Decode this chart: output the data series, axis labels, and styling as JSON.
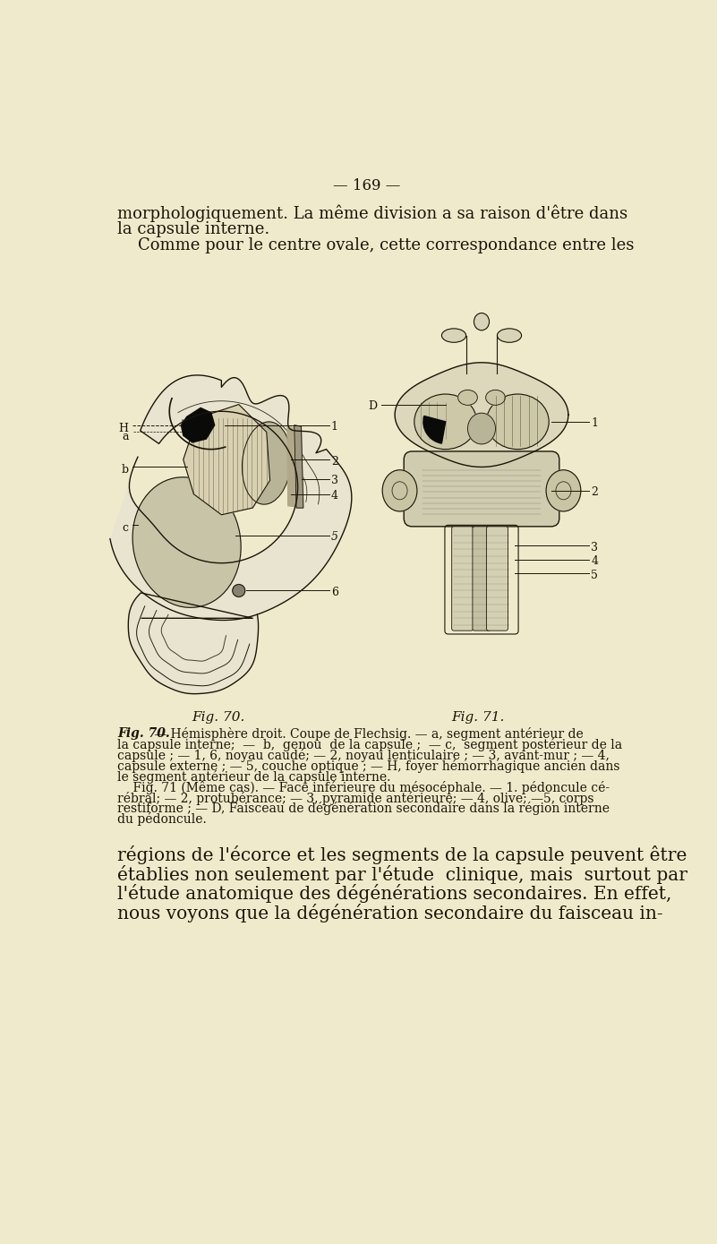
{
  "background_color": "#f0eacc",
  "page_number": "— 169 —",
  "top_text_lines": [
    "morphologiquement. La même division a sa raison d'être dans",
    "la capsule interne.",
    "    Comme pour le centre ovale, cette correspondance entre les"
  ],
  "fig_caption_70": "Fig. 70.",
  "fig_caption_71": "Fig. 71.",
  "caption_text_70_1": "Fig. 70. — ",
  "caption_text_70_1b": "Hémisphère droit. Coupe de Flechsig.",
  "caption_text_70_1c": " — a, segment antérieur de",
  "caption_lines": [
    "la capsule interne;  —  b,  genou  de la capsule ;  — c,  segment postérieur de la",
    "capsule ; — 1, 6, noyau caudé; — 2, noyau lenticulaire ; — 3, avant-mur ; — 4,",
    "capsule externe ; — 5, couche optique ; — H, foyer hémorrhagique ancien dans",
    "le segment antérieur de la capsule interne.",
    "    Fig. 71 (Même cas). — Face inférieure du mésocéphale. — 1. pédoncule cé-",
    "rébral; — 2, protubérance; — 3, pyramide antérieure; — 4, olive; —5, corps",
    "restiforme ; — D, Faisceau de dégénération secondaire dans la région interne",
    "du pédoncule."
  ],
  "bottom_text_lines": [
    "régions de l'écorce et les segments de la capsule peuvent être",
    "établies non seulement par l'étude  clinique, mais  surtout par",
    "l'étude anatomique des dégénérations secondaires. En effet,",
    "nous voyons que la dégénération secondaire du faisceau in-"
  ],
  "ink": "#1a1508",
  "gray": "#888070",
  "light_gray": "#c8c0a0",
  "dark_gray": "#404030",
  "font_size_body": 13,
  "font_size_caption": 10,
  "font_size_page_num": 12,
  "font_size_fig_label": 11,
  "font_size_bottom": 14.5
}
